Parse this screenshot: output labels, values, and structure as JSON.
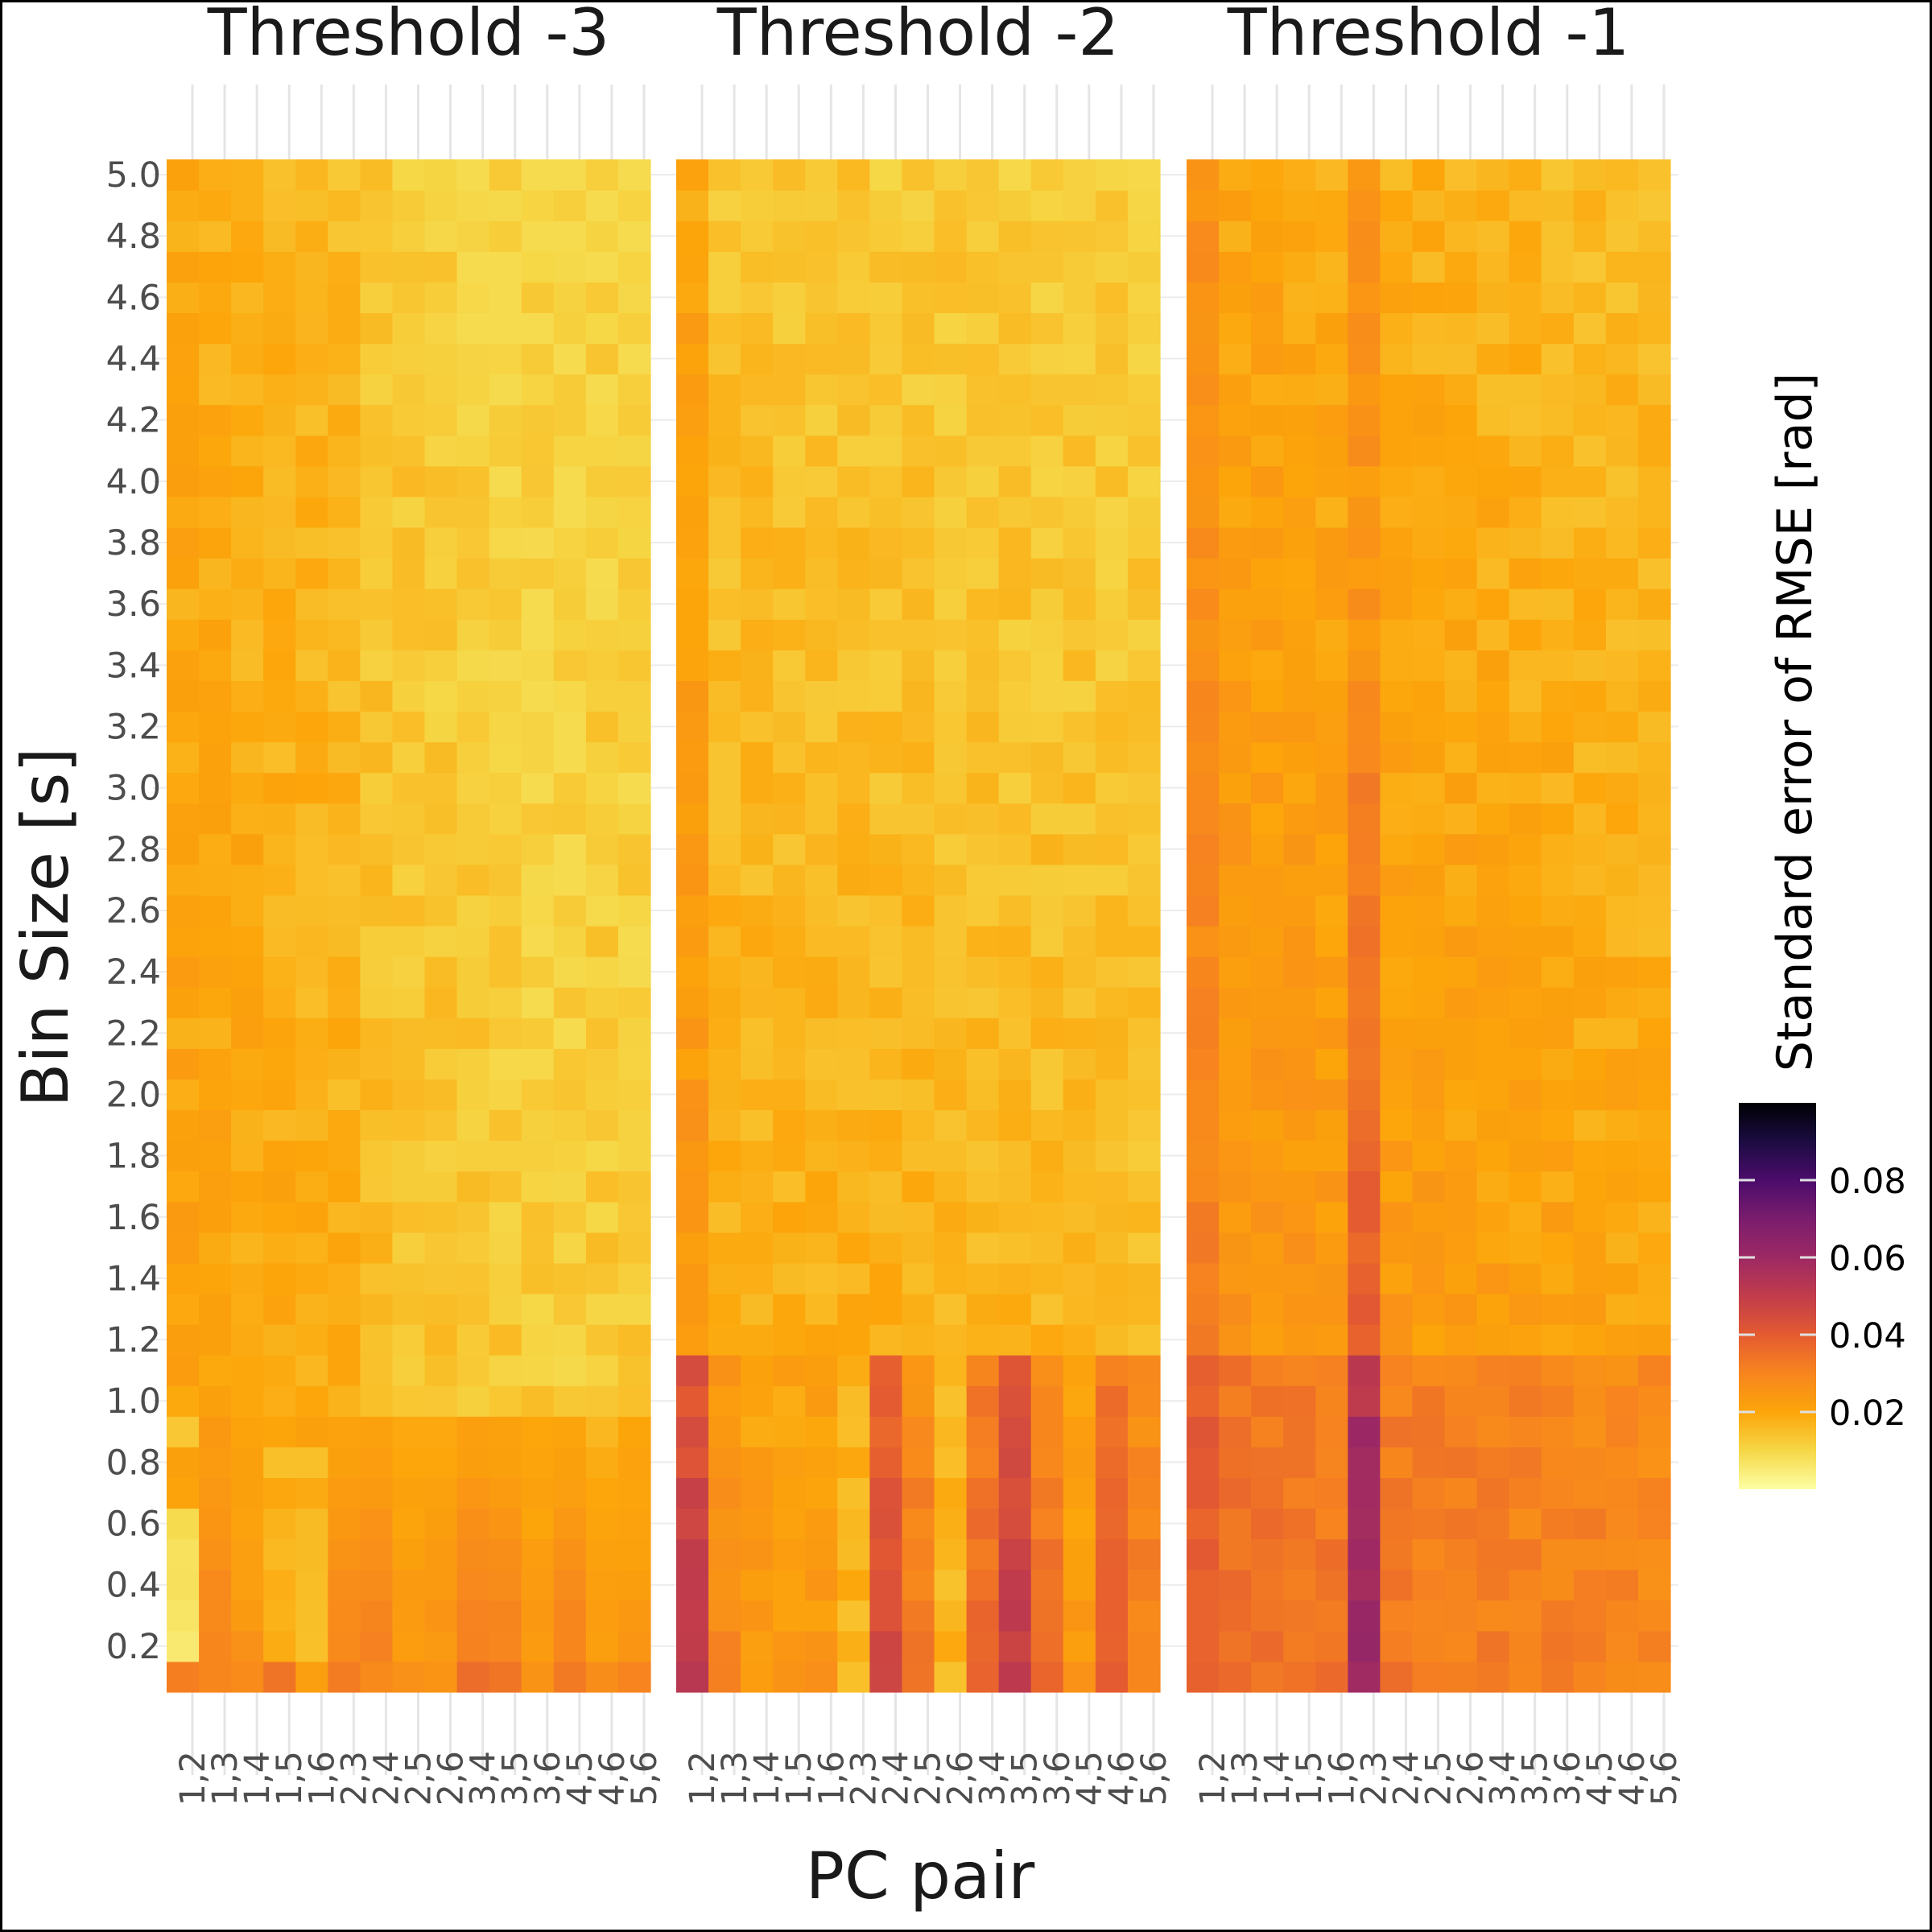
{
  "chart_data": {
    "type": "heatmap",
    "facets": [
      "Threshold -3",
      "Threshold -2",
      "Threshold -1"
    ],
    "x_categories": [
      "1,2",
      "1,3",
      "1,4",
      "1,5",
      "1,6",
      "2,3",
      "2,4",
      "2,5",
      "2,6",
      "3,4",
      "3,5",
      "3,6",
      "4,5",
      "4,6",
      "5,6"
    ],
    "y_values": [
      0.1,
      0.2,
      0.3,
      0.4,
      0.5,
      0.6,
      0.7,
      0.8,
      0.9,
      1.0,
      1.1,
      1.2,
      1.3,
      1.4,
      1.5,
      1.6,
      1.7,
      1.8,
      1.9,
      2.0,
      2.1,
      2.2,
      2.3,
      2.4,
      2.5,
      2.6,
      2.7,
      2.8,
      2.9,
      3.0,
      3.1,
      3.2,
      3.3,
      3.4,
      3.5,
      3.6,
      3.7,
      3.8,
      3.9,
      4.0,
      4.1,
      4.2,
      4.3,
      4.4,
      4.5,
      4.6,
      4.7,
      4.8,
      4.9,
      5.0
    ],
    "y_ticks": [
      "0.2",
      "0.4",
      "0.6",
      "0.8",
      "1.0",
      "1.2",
      "1.4",
      "1.6",
      "1.8",
      "2.0",
      "2.2",
      "2.4",
      "2.6",
      "2.8",
      "3.0",
      "3.2",
      "3.4",
      "3.6",
      "3.8",
      "4.0",
      "4.2",
      "4.4",
      "4.6",
      "4.8",
      "5.0"
    ],
    "xlabel": "PC pair",
    "ylabel": "Bin Size [s]",
    "legend": {
      "title": "Standard error of RMSE [rad]",
      "ticks": [
        "0.02",
        "0.04",
        "0.06",
        "0.08"
      ],
      "range": [
        0.0,
        0.1
      ],
      "placement": "right",
      "palette": "inferno (reversed)"
    },
    "colormap": [
      "#fcffa4",
      "#f6d746",
      "#fca50a",
      "#f7851e",
      "#e45a31",
      "#c13c4b",
      "#9d2964",
      "#7a1d6d",
      "#4b0c6b",
      "#1b0c41",
      "#000004"
    ],
    "values": {
      "note_units": "rad",
      "Threshold -3": {
        "base_rows": [
          [
            0.031,
            0.03,
            0.028,
            0.033,
            0.022,
            0.032,
            0.029,
            0.026,
            0.025,
            0.035,
            0.033,
            0.026,
            0.032,
            0.028,
            0.03
          ],
          [
            0.006,
            0.03,
            0.026,
            0.018,
            0.014,
            0.029,
            0.031,
            0.022,
            0.024,
            0.031,
            0.03,
            0.022,
            0.029,
            0.022,
            0.025
          ],
          [
            0.006,
            0.029,
            0.024,
            0.018,
            0.015,
            0.028,
            0.029,
            0.023,
            0.025,
            0.031,
            0.03,
            0.023,
            0.029,
            0.023,
            0.024
          ],
          [
            0.007,
            0.028,
            0.023,
            0.018,
            0.016,
            0.027,
            0.028,
            0.023,
            0.024,
            0.029,
            0.028,
            0.023,
            0.027,
            0.022,
            0.023
          ],
          [
            0.008,
            0.027,
            0.022,
            0.017,
            0.016,
            0.026,
            0.027,
            0.022,
            0.023,
            0.028,
            0.027,
            0.022,
            0.026,
            0.021,
            0.022
          ],
          [
            0.009,
            0.025,
            0.021,
            0.017,
            0.016,
            0.024,
            0.025,
            0.021,
            0.022,
            0.026,
            0.025,
            0.021,
            0.024,
            0.02,
            0.021
          ],
          [
            0.02,
            0.024,
            0.022,
            0.019,
            0.018,
            0.023,
            0.024,
            0.021,
            0.021,
            0.024,
            0.023,
            0.021,
            0.023,
            0.019,
            0.021
          ],
          [
            0.022,
            0.023,
            0.021,
            0.015,
            0.014,
            0.022,
            0.022,
            0.02,
            0.02,
            0.023,
            0.022,
            0.02,
            0.021,
            0.018,
            0.02
          ],
          [
            0.013,
            0.023,
            0.021,
            0.021,
            0.022,
            0.021,
            0.021,
            0.019,
            0.019,
            0.022,
            0.021,
            0.019,
            0.02,
            0.017,
            0.02
          ]
        ]
      }
    }
  }
}
